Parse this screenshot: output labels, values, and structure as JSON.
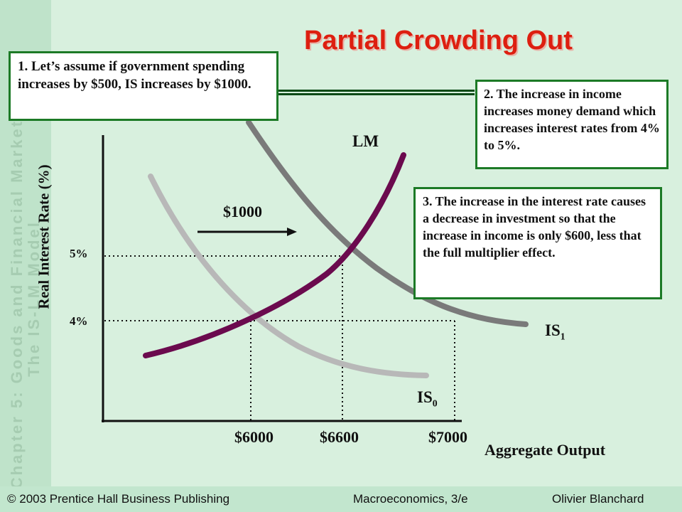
{
  "slide": {
    "title": "Partial Crowding Out",
    "sidebar_lines": [
      "Chapter 5: Goods and Financial Markets",
      "The IS-LM Model"
    ]
  },
  "callouts": [
    {
      "number": "1.",
      "text": "1. Let’s assume if government spending increases by $500, IS increases by $1000."
    },
    {
      "number": "2.",
      "text": "2. The increase in income increases money demand which increases interest rates from 4% to 5%."
    },
    {
      "number": "3.",
      "text": "3.  The increase in the interest rate causes a decrease in investment so that the increase in income is only $600, less that the full multiplier effect."
    }
  ],
  "diagram": {
    "y_axis_label": "Real Interest Rate (%)",
    "x_axis_label": "Aggregate Output",
    "y_ticks": [
      "5%",
      "4%"
    ],
    "x_ticks": [
      "$6000",
      "$6600",
      "$7000"
    ],
    "curve_labels": {
      "lm": "LM",
      "is0": "IS",
      "is0_sub": "0",
      "is1": "IS",
      "is1_sub": "1"
    },
    "shift_label": "$1000",
    "colors": {
      "lm": "#6b0a4e",
      "is0": "#b8b8b8",
      "is1": "#7a7a7a",
      "title": "#dd1f10",
      "box_border": "#1c7a26"
    }
  },
  "footer": {
    "left": "© 2003 Prentice Hall Business Publishing",
    "center": "Macroeconomics, 3/e",
    "right": "Olivier Blanchard"
  }
}
